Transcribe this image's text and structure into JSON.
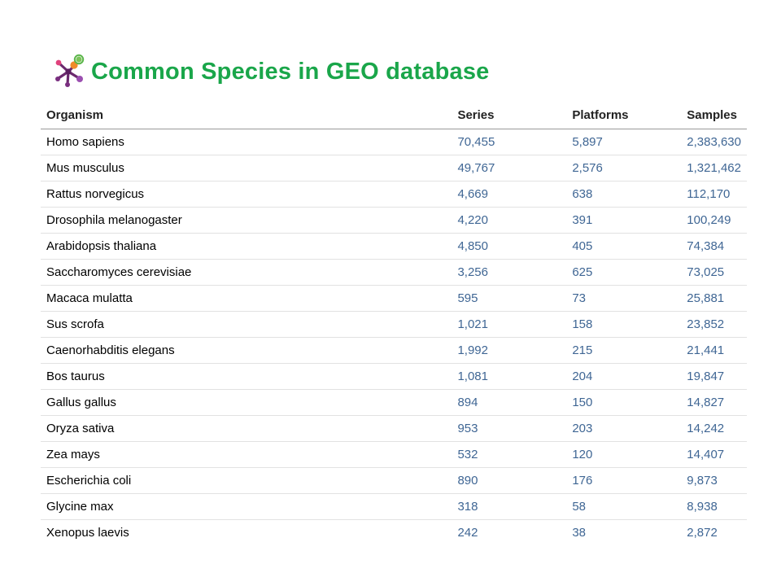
{
  "header": {
    "title": "Common Species in GEO database",
    "logo_icon": "geo-molecule-icon",
    "title_color": "#1aa64a"
  },
  "table": {
    "columns": [
      "Organism",
      "Series",
      "Platforms",
      "Samples"
    ],
    "rows": [
      {
        "organism": "Homo sapiens",
        "series": "70,455",
        "platforms": "5,897",
        "samples": "2,383,630"
      },
      {
        "organism": "Mus musculus",
        "series": "49,767",
        "platforms": "2,576",
        "samples": "1,321,462"
      },
      {
        "organism": "Rattus norvegicus",
        "series": "4,669",
        "platforms": "638",
        "samples": "112,170"
      },
      {
        "organism": "Drosophila melanogaster",
        "series": "4,220",
        "platforms": "391",
        "samples": "100,249"
      },
      {
        "organism": "Arabidopsis thaliana",
        "series": "4,850",
        "platforms": "405",
        "samples": "74,384"
      },
      {
        "organism": "Saccharomyces cerevisiae",
        "series": "3,256",
        "platforms": "625",
        "samples": "73,025"
      },
      {
        "organism": "Macaca mulatta",
        "series": "595",
        "platforms": "73",
        "samples": "25,881"
      },
      {
        "organism": "Sus scrofa",
        "series": "1,021",
        "platforms": "158",
        "samples": "23,852"
      },
      {
        "organism": "Caenorhabditis elegans",
        "series": "1,992",
        "platforms": "215",
        "samples": "21,441"
      },
      {
        "organism": "Bos taurus",
        "series": "1,081",
        "platforms": "204",
        "samples": "19,847"
      },
      {
        "organism": "Gallus gallus",
        "series": "894",
        "platforms": "150",
        "samples": "14,827"
      },
      {
        "organism": "Oryza sativa",
        "series": "953",
        "platforms": "203",
        "samples": "14,242"
      },
      {
        "organism": "Zea mays",
        "series": "532",
        "platforms": "120",
        "samples": "14,407"
      },
      {
        "organism": "Escherichia coli",
        "series": "890",
        "platforms": "176",
        "samples": "9,873"
      },
      {
        "organism": "Glycine max",
        "series": "318",
        "platforms": "58",
        "samples": "8,938"
      },
      {
        "organism": "Xenopus laevis",
        "series": "242",
        "platforms": "38",
        "samples": "2,872"
      }
    ],
    "link_color": "#3f6694"
  }
}
